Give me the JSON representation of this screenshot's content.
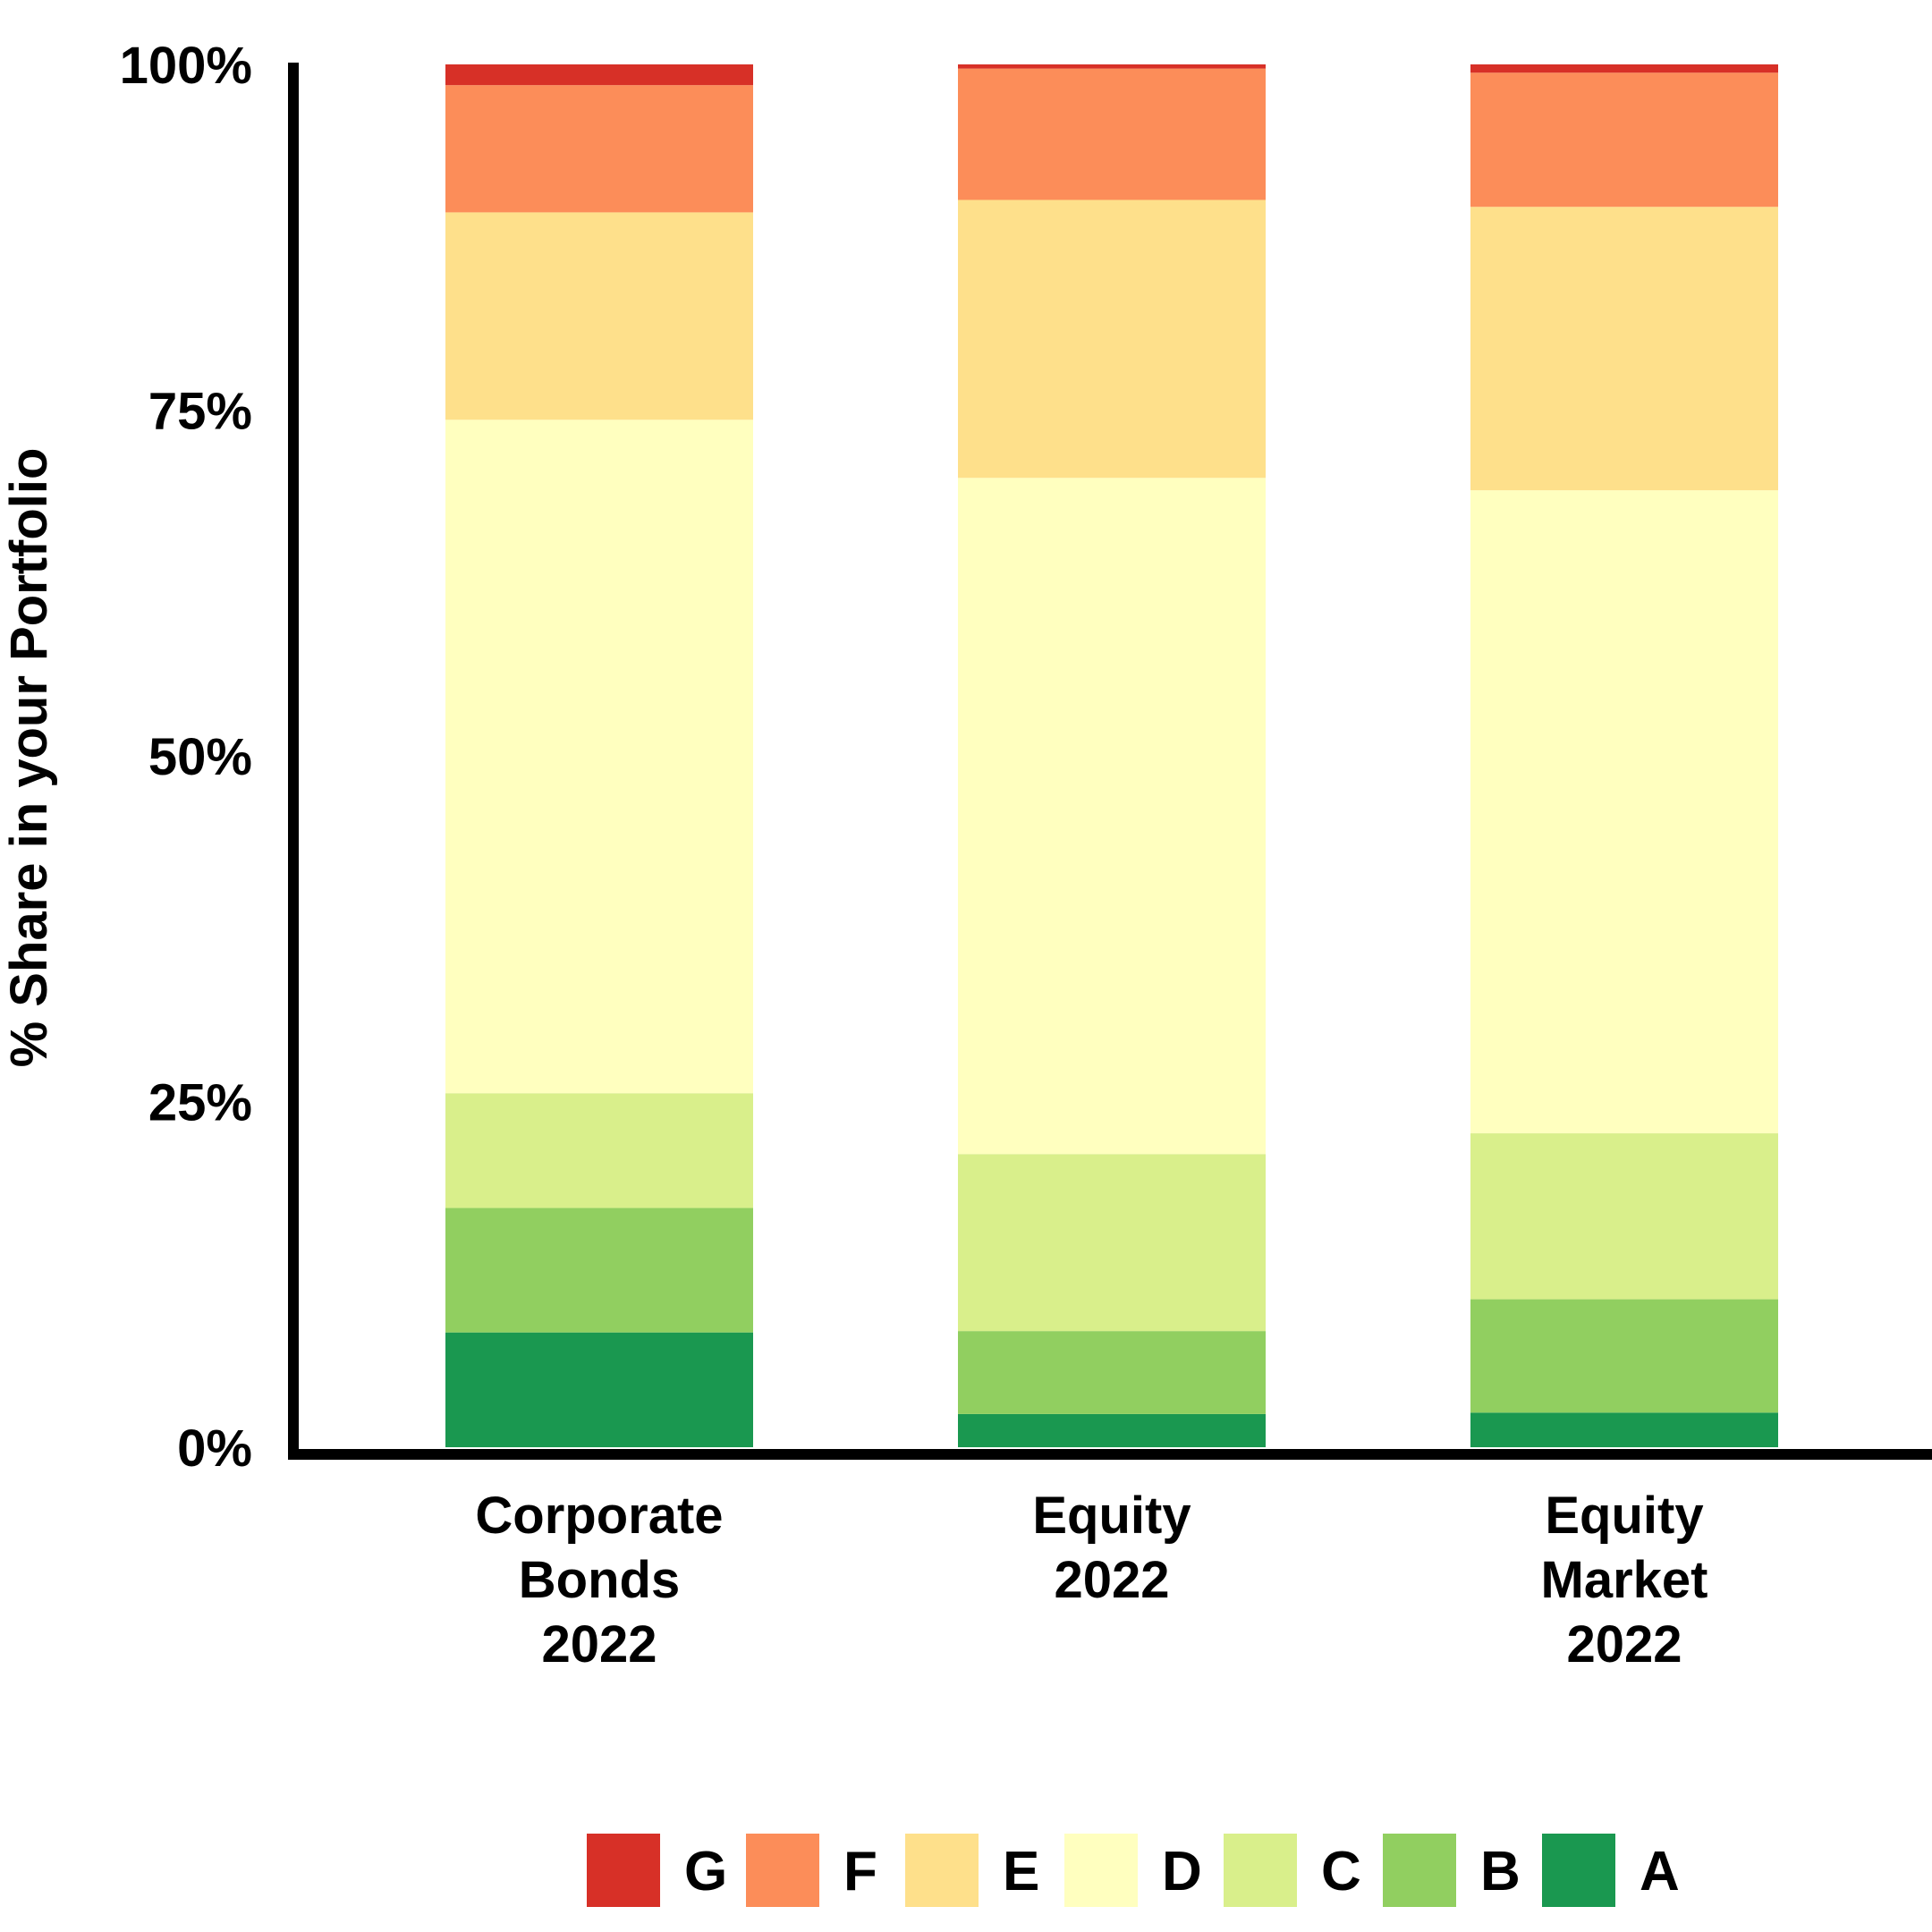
{
  "chart_data": {
    "type": "bar",
    "stacked": true,
    "categories": [
      [
        "Corporate",
        "Bonds",
        "2022"
      ],
      [
        "Equity",
        "2022"
      ],
      [
        "Equity",
        "Market",
        "2022"
      ]
    ],
    "ylabel": "% Share in your Portfolio",
    "ylim": [
      0,
      100
    ],
    "yticks": [
      {
        "value": 0,
        "label": "0%"
      },
      {
        "value": 25,
        "label": "25%"
      },
      {
        "value": 50,
        "label": "50%"
      },
      {
        "value": 75,
        "label": "75%"
      },
      {
        "value": 100,
        "label": "100%"
      }
    ],
    "grid": false,
    "legend_position": "bottom",
    "series": [
      {
        "name": "A",
        "color": "#1a9850",
        "values": [
          8.3,
          2.4,
          2.5
        ]
      },
      {
        "name": "B",
        "color": "#91cf60",
        "values": [
          9.0,
          6.0,
          8.2
        ]
      },
      {
        "name": "C",
        "color": "#d9ef8b",
        "values": [
          8.3,
          12.8,
          12.0
        ]
      },
      {
        "name": "D",
        "color": "#ffffbf",
        "values": [
          48.7,
          48.9,
          46.5
        ]
      },
      {
        "name": "E",
        "color": "#fee08b",
        "values": [
          15.0,
          20.1,
          20.5
        ]
      },
      {
        "name": "F",
        "color": "#fc8d59",
        "values": [
          9.2,
          9.5,
          9.7
        ]
      },
      {
        "name": "G",
        "color": "#d73027",
        "values": [
          1.5,
          0.3,
          0.6
        ]
      }
    ],
    "legend_order": [
      "G",
      "F",
      "E",
      "D",
      "C",
      "B",
      "A"
    ]
  }
}
